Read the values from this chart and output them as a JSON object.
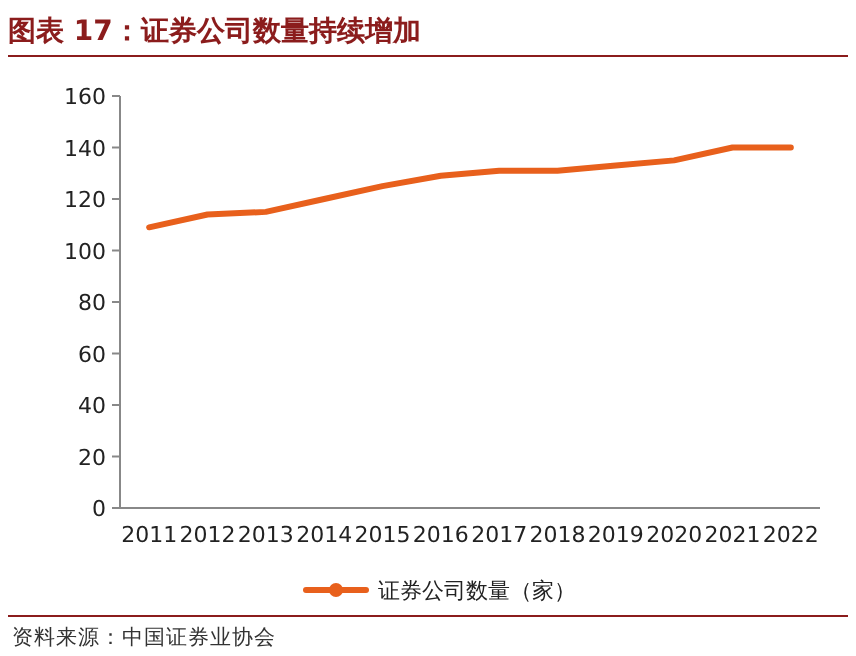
{
  "chart_data": {
    "type": "line",
    "title": "图表 17：证券公司数量持续增加",
    "categories": [
      "2011",
      "2012",
      "2013",
      "2014",
      "2015",
      "2016",
      "2017",
      "2018",
      "2019",
      "2020",
      "2021",
      "2022"
    ],
    "series": [
      {
        "name": "证券公司数量（家）",
        "color": "#e8601c",
        "values": [
          109,
          114,
          115,
          120,
          125,
          129,
          131,
          131,
          133,
          135,
          140,
          140
        ]
      }
    ],
    "ylim": [
      0,
      160
    ],
    "yticks": [
      0,
      20,
      40,
      60,
      80,
      100,
      120,
      140,
      160
    ],
    "legend": "bottom",
    "marker": "none",
    "annotations": [
      "资料来源：中国证券业协会"
    ]
  }
}
